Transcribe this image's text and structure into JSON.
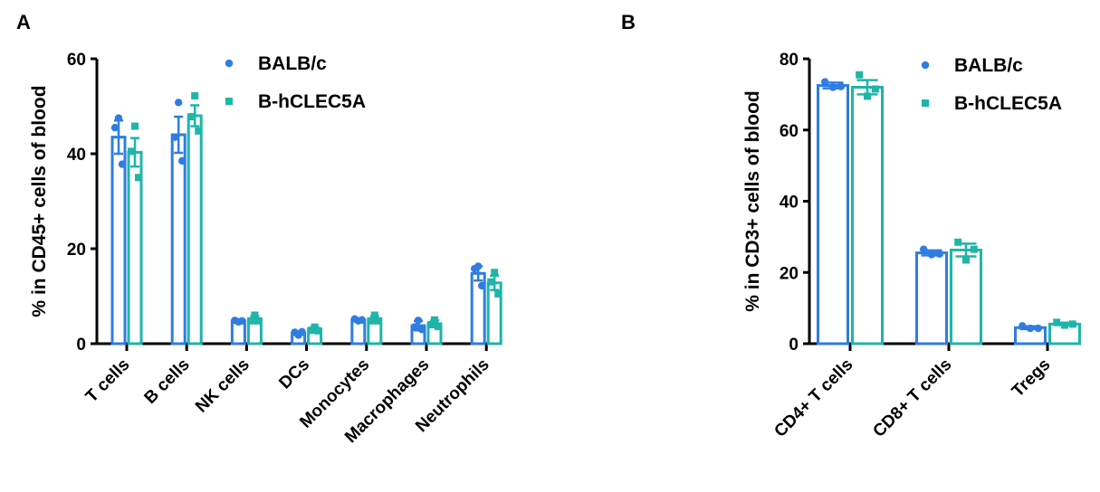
{
  "colors": {
    "BALB/c": "#2f7de1",
    "B-hCLEC5A": "#1fb5a8",
    "axis": "#000000"
  },
  "chart_data": [
    {
      "panel": "A",
      "type": "bar",
      "ylabel": "% in CD45+ cells of blood",
      "ylim": [
        0,
        60
      ],
      "yticks": [
        0,
        20,
        40,
        60
      ],
      "legend": "top-right",
      "categories": [
        "T cells",
        "B cells",
        "NK cells",
        "DCs",
        "Monocytes",
        "Macrophages",
        "Neutrophils"
      ],
      "series": [
        {
          "name": "BALB/c",
          "marker": "circle",
          "values": [
            43.5,
            44.0,
            4.8,
            2.2,
            5.0,
            3.8,
            14.8
          ],
          "errors": [
            3.5,
            3.8,
            0.3,
            0.4,
            0.3,
            1.0,
            1.5
          ],
          "points": [
            [
              47.5,
              45.5,
              37.8
            ],
            [
              50.8,
              43.5,
              38.5
            ],
            [
              4.6,
              4.9,
              4.8
            ],
            [
              1.8,
              2.4,
              2.5
            ],
            [
              4.8,
              5.2,
              5.0
            ],
            [
              4.9,
              3.5,
              3.0
            ],
            [
              16.3,
              15.8,
              12.2
            ]
          ]
        },
        {
          "name": "B-hCLEC5A",
          "marker": "square",
          "values": [
            40.3,
            48.0,
            5.2,
            3.0,
            5.2,
            4.2,
            12.8
          ],
          "errors": [
            3.0,
            2.2,
            0.6,
            0.5,
            0.6,
            0.7,
            1.5
          ],
          "points": [
            [
              45.8,
              40.5,
              35.0
            ],
            [
              52.2,
              47.8,
              44.8
            ],
            [
              6.0,
              4.8,
              4.8
            ],
            [
              3.5,
              2.8,
              2.7
            ],
            [
              6.0,
              4.8,
              4.8
            ],
            [
              5.0,
              4.0,
              3.6
            ],
            [
              15.0,
              13.0,
              10.5
            ]
          ]
        }
      ]
    },
    {
      "panel": "B",
      "type": "bar",
      "ylabel": "% in CD3+ cells of blood",
      "ylim": [
        0,
        80
      ],
      "yticks": [
        0,
        20,
        40,
        60,
        80
      ],
      "legend": "top-right",
      "categories": [
        "CD4+ T cells",
        "CD8+ T cells",
        "Tregs"
      ],
      "series": [
        {
          "name": "BALB/c",
          "marker": "circle",
          "values": [
            72.5,
            25.5,
            4.5
          ],
          "errors": [
            0.8,
            0.7,
            0.4
          ],
          "points": [
            [
              73.5,
              72.2,
              72.0
            ],
            [
              26.5,
              25.2,
              25.0
            ],
            [
              5.0,
              4.3,
              4.3
            ]
          ]
        },
        {
          "name": "B-hCLEC5A",
          "marker": "square",
          "values": [
            72.0,
            26.3,
            5.5
          ],
          "errors": [
            2.0,
            1.8,
            0.3
          ],
          "points": [
            [
              75.5,
              71.5,
              69.5
            ],
            [
              28.5,
              26.5,
              23.5
            ],
            [
              6.0,
              5.5,
              5.2
            ]
          ]
        }
      ]
    }
  ]
}
